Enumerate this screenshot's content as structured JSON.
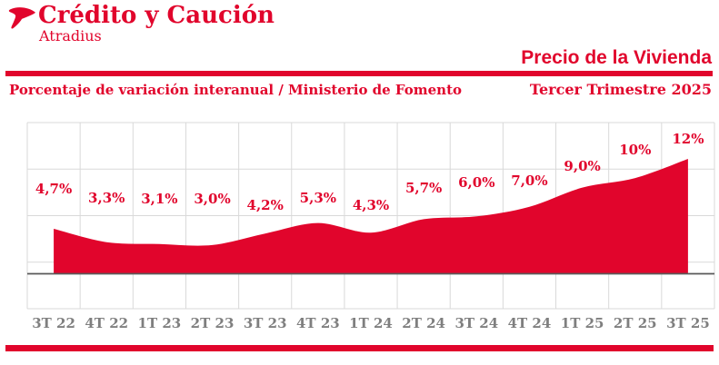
{
  "brand": {
    "name": "Crédito y Caución",
    "subbrand": "Atradius",
    "logo_icon": "bird-mark-icon"
  },
  "header": {
    "title": "Precio de la Vivienda",
    "subtitle_left": "Porcentaje de variación interanual / Ministerio de Fomento",
    "subtitle_right": "Tercer Trimestre 2025"
  },
  "colors": {
    "brand_red": "#E1052C",
    "grid": "#D9D9D9",
    "zero_line": "#595959",
    "axis_label_gray": "#7F7F7F",
    "background": "#FFFFFF"
  },
  "chart_data": {
    "type": "area",
    "title": "Precio de la Vivienda",
    "subtitle": "Tercer Trimestre 2025",
    "source_label": "Porcentaje de variación interanual / Ministerio de Fomento",
    "categories": [
      "3T 22",
      "4T 22",
      "1T 23",
      "2T 23",
      "3T 23",
      "4T 23",
      "1T 24",
      "2T 24",
      "3T 24",
      "4T 24",
      "1T 25",
      "2T 25",
      "3T 25"
    ],
    "values": [
      4.7,
      3.3,
      3.1,
      3.0,
      4.2,
      5.3,
      4.3,
      5.7,
      6.0,
      7.0,
      9.0,
      10,
      12
    ],
    "labels": [
      "4,7%",
      "3,3%",
      "3,1%",
      "3,0%",
      "4,2%",
      "5,3%",
      "4,3%",
      "5,7%",
      "6,0%",
      "7,0%",
      "9,0%",
      "10%",
      "12%"
    ],
    "xlabel": "",
    "ylabel": "",
    "unit": "%",
    "ylim": [
      -3.6,
      15.8
    ],
    "grid": true,
    "legend": false,
    "fill_color": "#E1052C"
  }
}
